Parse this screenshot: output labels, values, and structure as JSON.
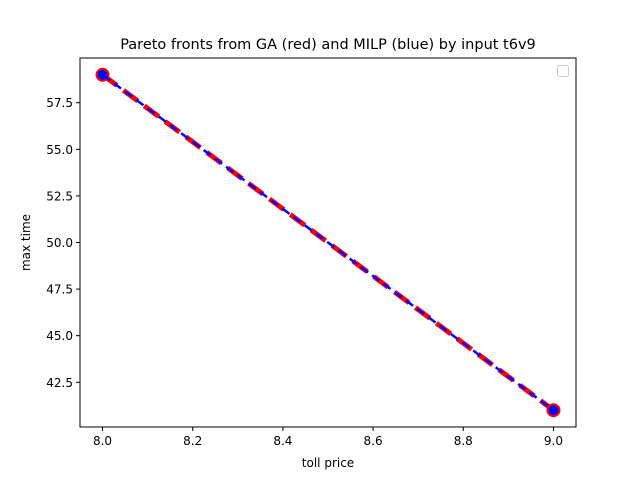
{
  "chart_data": {
    "type": "line",
    "title": "Pareto fronts from GA (red) and MILP (blue) by input t6v9",
    "xlabel": "toll price",
    "ylabel": "max time",
    "xlim": [
      7.95,
      9.05
    ],
    "ylim": [
      40.1,
      59.9
    ],
    "xticks": [
      8.0,
      8.2,
      8.4,
      8.6,
      8.8,
      9.0
    ],
    "xtick_labels": [
      "8.0",
      "8.2",
      "8.4",
      "8.6",
      "8.8",
      "9.0"
    ],
    "yticks": [
      42.5,
      45.0,
      47.5,
      50.0,
      52.5,
      55.0,
      57.5
    ],
    "ytick_labels": [
      "42.5",
      "45.0",
      "47.5",
      "50.0",
      "52.5",
      "55.0",
      "57.5"
    ],
    "grid": false,
    "legend": {
      "placement": "top-right",
      "entries": []
    },
    "series": [
      {
        "color": "#ff0000",
        "line_style": "dashed",
        "marker": "circle",
        "x": [
          8.0,
          9.0
        ],
        "y": [
          59.0,
          41.0
        ]
      },
      {
        "color": "#0000ff",
        "line_style": "dashed",
        "marker": "circle",
        "x": [
          8.0,
          9.0
        ],
        "y": [
          59.0,
          41.0
        ]
      }
    ]
  }
}
